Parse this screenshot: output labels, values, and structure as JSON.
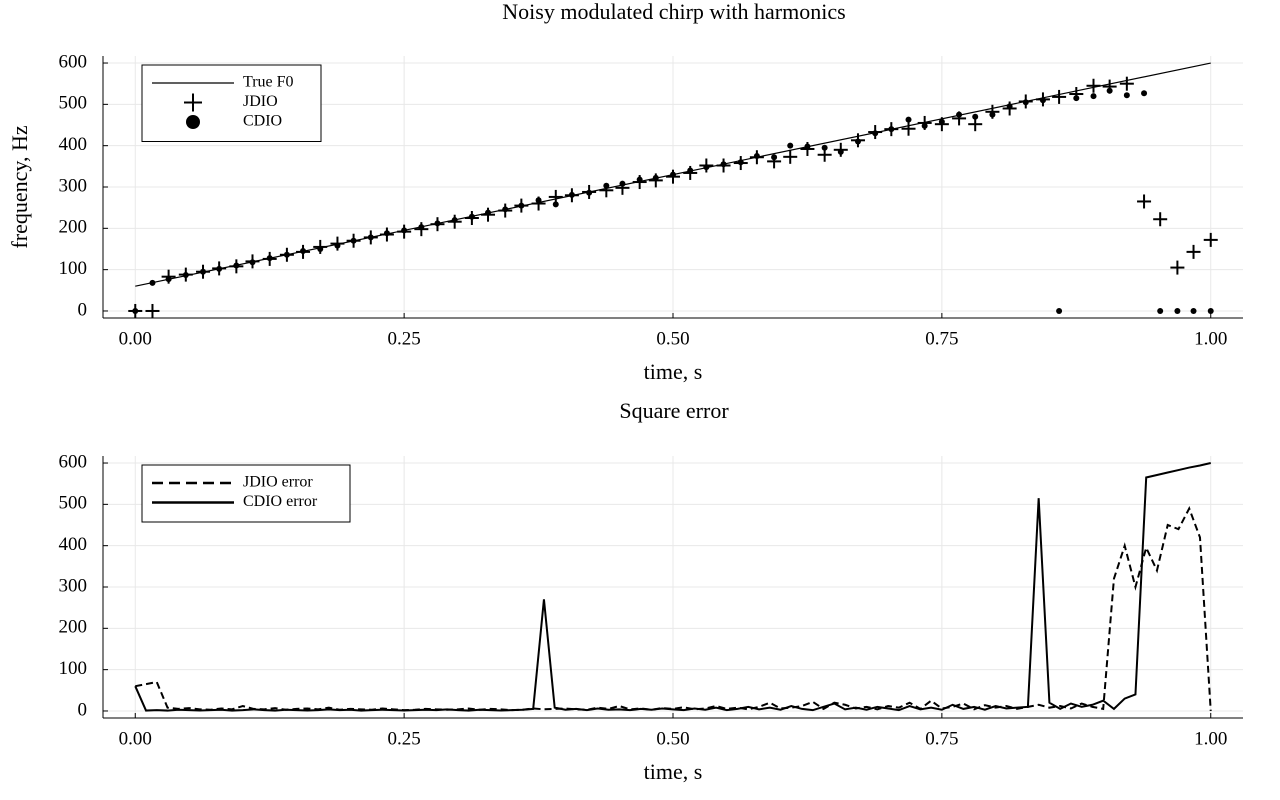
{
  "chart_data": [
    {
      "type": "line",
      "title": "Noisy modulated chirp with harmonics",
      "x_label": "time, s",
      "y_label": "frequency, Hz",
      "xlim": [
        -0.03,
        1.03
      ],
      "ylim": [
        -17,
        617
      ],
      "grid": true,
      "legend": "top left",
      "xticks": [
        {
          "value": 0,
          "label": "0.00"
        },
        {
          "value": 0.25,
          "label": "0.25"
        },
        {
          "value": 0.5,
          "label": "0.50"
        },
        {
          "value": 0.75,
          "label": "0.75"
        },
        {
          "value": 1,
          "label": "1.00"
        }
      ],
      "yticks": [
        0,
        100,
        200,
        300,
        400,
        500,
        600
      ],
      "x": [
        0,
        0.016,
        0.031,
        0.047,
        0.063,
        0.078,
        0.094,
        0.109,
        0.125,
        0.141,
        0.156,
        0.172,
        0.188,
        0.203,
        0.219,
        0.234,
        0.25,
        0.266,
        0.281,
        0.297,
        0.313,
        0.328,
        0.344,
        0.359,
        0.375,
        0.391,
        0.406,
        0.422,
        0.438,
        0.453,
        0.469,
        0.484,
        0.5,
        0.516,
        0.531,
        0.547,
        0.563,
        0.578,
        0.594,
        0.609,
        0.625,
        0.641,
        0.656,
        0.672,
        0.688,
        0.703,
        0.719,
        0.734,
        0.75,
        0.766,
        0.781,
        0.797,
        0.813,
        0.828,
        0.844,
        0.859,
        0.875,
        0.891,
        0.906,
        0.922,
        0.938,
        0.953,
        0.969,
        0.984,
        1
      ],
      "series": [
        {
          "name": "True F0",
          "color": "#000000",
          "marker": "none",
          "x": [
            0,
            1
          ],
          "values": [
            60,
            600
          ]
        },
        {
          "name": "JDIO",
          "color": "#000000",
          "marker": "cross",
          "values": [
            0,
            0,
            83,
            88,
            95,
            103,
            108,
            120,
            126,
            136,
            143,
            155,
            163,
            170,
            178,
            185,
            192,
            198,
            210,
            216,
            225,
            233,
            243,
            255,
            260,
            276,
            280,
            288,
            292,
            298,
            312,
            316,
            325,
            334,
            352,
            352,
            358,
            372,
            362,
            373,
            392,
            378,
            390,
            413,
            433,
            440,
            441,
            455,
            452,
            466,
            452,
            482,
            490,
            507,
            512,
            518,
            525,
            545,
            543,
            550,
            265,
            222,
            105,
            143,
            172
          ]
        },
        {
          "name": "CDIO",
          "color": "#000000",
          "marker": "dot",
          "values": [
            0,
            68,
            77,
            87,
            95,
            102,
            110,
            118,
            128,
            136,
            145,
            150,
            158,
            170,
            178,
            188,
            195,
            203,
            212,
            220,
            228,
            238,
            246,
            255,
            268,
            258,
            281,
            286,
            303,
            308,
            318,
            322,
            330,
            340,
            348,
            355,
            360,
            375,
            372,
            400,
            398,
            395,
            385,
            410,
            430,
            440,
            463,
            448,
            458,
            475,
            470,
            475,
            495,
            505,
            510,
            0,
            515,
            520,
            533,
            522,
            527,
            0,
            0,
            0,
            0
          ]
        }
      ]
    },
    {
      "type": "line",
      "title": "Square error",
      "x_label": "time, s",
      "xlim": [
        -0.03,
        1.03
      ],
      "ylim": [
        -17,
        617
      ],
      "grid": true,
      "legend": "top left",
      "xticks": [
        {
          "value": 0,
          "label": "0.00"
        },
        {
          "value": 0.25,
          "label": "0.25"
        },
        {
          "value": 0.5,
          "label": "0.50"
        },
        {
          "value": 0.75,
          "label": "0.75"
        },
        {
          "value": 1,
          "label": "1.00"
        }
      ],
      "yticks": [
        0,
        100,
        200,
        300,
        400,
        500,
        600
      ],
      "x": [
        0,
        0.01,
        0.02,
        0.03,
        0.04,
        0.05,
        0.06,
        0.07,
        0.08,
        0.09,
        0.1,
        0.11,
        0.12,
        0.13,
        0.14,
        0.15,
        0.16,
        0.17,
        0.18,
        0.19,
        0.2,
        0.21,
        0.22,
        0.23,
        0.24,
        0.25,
        0.26,
        0.27,
        0.28,
        0.29,
        0.3,
        0.31,
        0.32,
        0.33,
        0.34,
        0.35,
        0.36,
        0.37,
        0.38,
        0.39,
        0.4,
        0.41,
        0.42,
        0.43,
        0.44,
        0.45,
        0.46,
        0.47,
        0.48,
        0.49,
        0.5,
        0.51,
        0.52,
        0.53,
        0.54,
        0.55,
        0.56,
        0.57,
        0.58,
        0.59,
        0.6,
        0.61,
        0.62,
        0.63,
        0.64,
        0.65,
        0.66,
        0.67,
        0.68,
        0.69,
        0.7,
        0.71,
        0.72,
        0.73,
        0.74,
        0.75,
        0.76,
        0.77,
        0.78,
        0.79,
        0.8,
        0.81,
        0.82,
        0.83,
        0.84,
        0.85,
        0.86,
        0.87,
        0.88,
        0.89,
        0.9,
        0.91,
        0.92,
        0.93,
        0.94,
        0.95,
        0.96,
        0.97,
        0.98,
        0.99,
        1
      ],
      "series": [
        {
          "name": "JDIO error",
          "color": "#000000",
          "marker": "none",
          "dashed": true,
          "values": [
            60,
            65,
            70,
            8,
            5,
            7,
            4,
            3,
            6,
            4,
            12,
            5,
            4,
            7,
            3,
            5,
            6,
            4,
            8,
            3,
            5,
            4,
            3,
            6,
            4,
            2,
            3,
            5,
            4,
            3,
            4,
            6,
            3,
            5,
            4,
            2,
            3,
            6,
            4,
            5,
            6,
            4,
            3,
            8,
            5,
            12,
            4,
            6,
            3,
            7,
            5,
            9,
            4,
            6,
            12,
            5,
            8,
            4,
            10,
            20,
            6,
            8,
            12,
            22,
            5,
            20,
            15,
            6,
            10,
            4,
            12,
            8,
            20,
            5,
            25,
            6,
            10,
            18,
            4,
            14,
            8,
            12,
            5,
            10,
            15,
            8,
            12,
            6,
            18,
            10,
            5,
            320,
            400,
            300,
            395,
            340,
            450,
            440,
            490,
            420,
            0
          ]
        },
        {
          "name": "CDIO error",
          "color": "#000000",
          "marker": "none",
          "dashed": false,
          "values": [
            60,
            1,
            2,
            1,
            3,
            2,
            1,
            2,
            3,
            1,
            2,
            4,
            2,
            1,
            3,
            2,
            1,
            2,
            4,
            2,
            3,
            1,
            2,
            3,
            2,
            1,
            2,
            3,
            2,
            4,
            2,
            1,
            3,
            2,
            1,
            2,
            3,
            5,
            270,
            8,
            3,
            5,
            2,
            6,
            3,
            4,
            2,
            5,
            3,
            6,
            4,
            2,
            6,
            3,
            8,
            2,
            5,
            10,
            4,
            8,
            3,
            12,
            5,
            2,
            10,
            18,
            4,
            8,
            3,
            10,
            6,
            2,
            12,
            4,
            8,
            3,
            15,
            5,
            10,
            3,
            12,
            6,
            8,
            10,
            515,
            20,
            5,
            18,
            10,
            15,
            25,
            5,
            30,
            40,
            565,
            571,
            577,
            583,
            589,
            594,
            600
          ]
        }
      ]
    }
  ]
}
